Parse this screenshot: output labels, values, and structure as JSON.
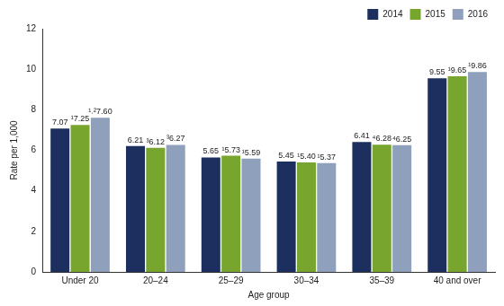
{
  "chart_data": {
    "type": "bar",
    "x_label": "Age group",
    "y_label": "Rate per 1,000",
    "categories": [
      "Under 20",
      "20–24",
      "25–29",
      "30–34",
      "35–39",
      "40 and over"
    ],
    "series": [
      {
        "name": "2014",
        "color": "#1c2f5e",
        "values": [
          7.07,
          6.21,
          5.65,
          5.45,
          6.41,
          9.55
        ],
        "value_labels": [
          "7.07",
          "6.21",
          "5.65",
          "5.45",
          "6.41",
          "9.55"
        ]
      },
      {
        "name": "2015",
        "color": "#77a52e",
        "values": [
          7.25,
          6.12,
          5.73,
          5.4,
          6.28,
          9.65
        ],
        "value_labels": [
          "¹7.25",
          "³6.12",
          "¹5.73",
          "¹5.40",
          "⁴6.28",
          "¹9.65"
        ]
      },
      {
        "name": "2016",
        "color": "#8ea0bb",
        "values": [
          7.6,
          6.27,
          5.59,
          5.37,
          6.25,
          9.86
        ],
        "value_labels": [
          "¹˒²7.60",
          "³6.27",
          "¹5.59",
          "¹5.37",
          "⁴6.25",
          "¹9.86"
        ]
      }
    ],
    "ylim": [
      0,
      12
    ],
    "yticks": [
      0,
      2,
      4,
      6,
      8,
      10,
      12
    ],
    "grid": false,
    "legend": "top right",
    "data_labels": true
  }
}
